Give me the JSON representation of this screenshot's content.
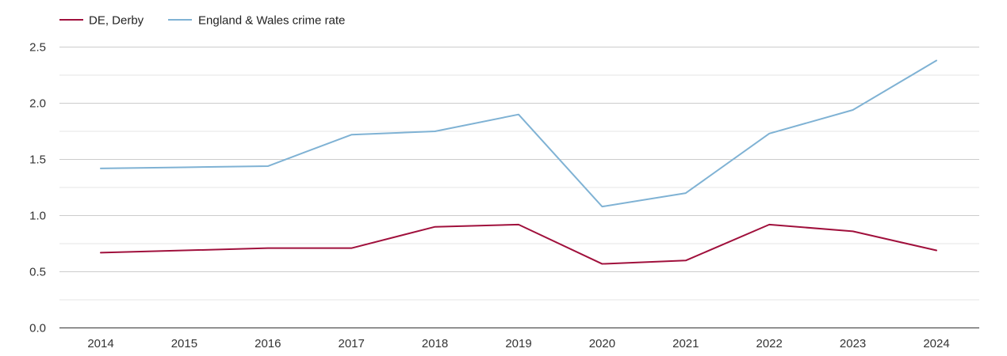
{
  "chart_data": {
    "type": "line",
    "title": "",
    "xlabel": "",
    "ylabel": "",
    "categories": [
      "2014",
      "2015",
      "2016",
      "2017",
      "2018",
      "2019",
      "2020",
      "2021",
      "2022",
      "2023",
      "2024"
    ],
    "ylim": [
      0,
      2.5
    ],
    "yticks": [
      "0.0",
      "0.5",
      "1.0",
      "1.5",
      "2.0",
      "2.5"
    ],
    "grid": true,
    "legend_position": "top-left",
    "series": [
      {
        "name": "DE, Derby",
        "color": "#a0103c",
        "values": [
          0.67,
          0.69,
          0.71,
          0.71,
          0.9,
          0.92,
          0.57,
          0.6,
          0.92,
          0.86,
          0.69
        ]
      },
      {
        "name": "England & Wales crime rate",
        "color": "#7fb2d4",
        "values": [
          1.42,
          1.43,
          1.44,
          1.72,
          1.75,
          1.9,
          1.08,
          1.2,
          1.73,
          1.94,
          2.38
        ]
      }
    ]
  }
}
